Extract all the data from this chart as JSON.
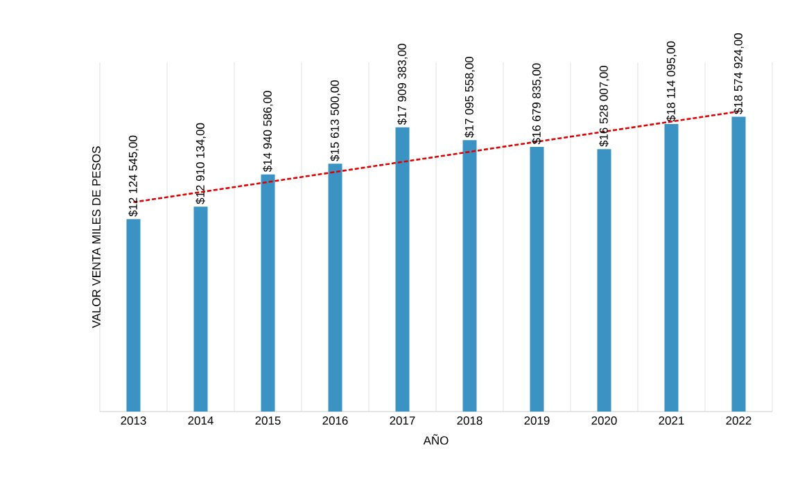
{
  "chart_data": {
    "type": "bar",
    "xlabel": "AÑO",
    "ylabel": "VALOR VENTA MILES DE PESOS",
    "categories": [
      "2013",
      "2014",
      "2015",
      "2016",
      "2017",
      "2018",
      "2019",
      "2020",
      "2021",
      "2022"
    ],
    "ylim": [
      0,
      22000000
    ],
    "tick_labels": "x",
    "grid": "x",
    "series": [
      {
        "color": "#3a93c3",
        "values": [
          12124545,
          12910134,
          14940586,
          15613500,
          17909383,
          17095558,
          16679835,
          16528007,
          18114095,
          18574924
        ],
        "value_labels": [
          "$12 124 545,00",
          "$12 910 134,00",
          "$14 940 586,00",
          "$15 613 500,00",
          "$17 909 383,00",
          "$17 095 558,00",
          "$16 679 835,00",
          "$16 528 007,00",
          "$18 114 095,00",
          "$18 574 924,00"
        ]
      },
      {
        "type": "line",
        "color": "#e00000",
        "line_style": "dashed",
        "values": [
          13190000,
          13825000,
          14460000,
          15095000,
          15730000,
          16365000,
          17000000,
          17635000,
          18270000,
          18905000
        ]
      }
    ]
  }
}
